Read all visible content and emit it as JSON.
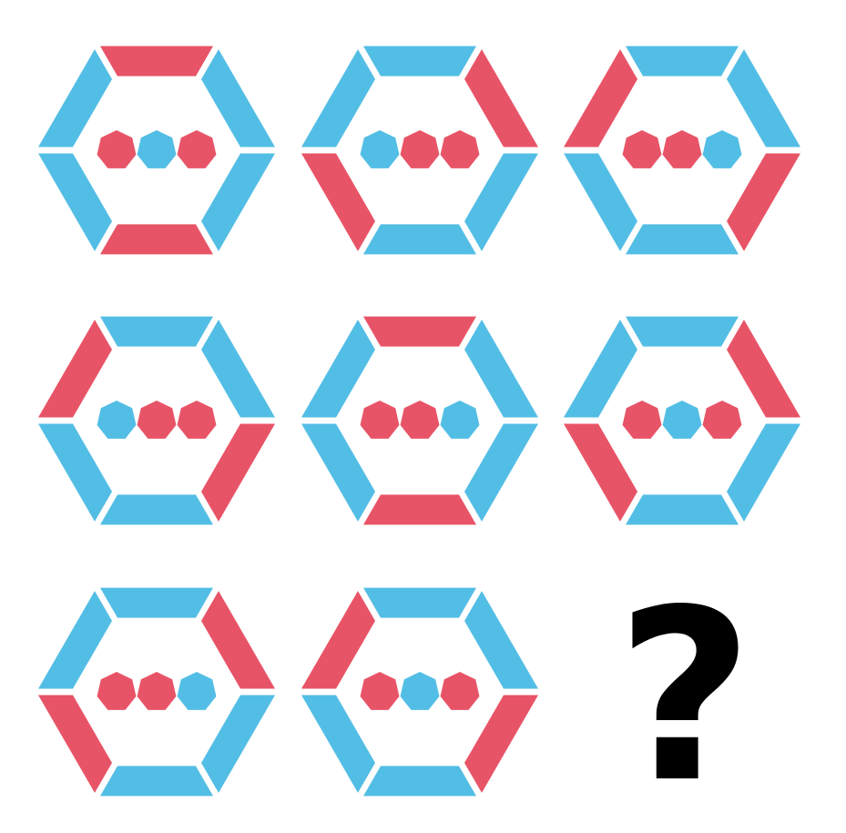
{
  "colors": {
    "red": "#E85467",
    "blue": "#53BEE5",
    "black": "#000000",
    "background": "#FFFFFF"
  },
  "puzzle": {
    "cells": [
      {
        "row": 1,
        "col": 1,
        "segments": [
          "red",
          "blue",
          "blue",
          "red",
          "blue",
          "blue"
        ],
        "dots": [
          "red",
          "blue",
          "red"
        ]
      },
      {
        "row": 1,
        "col": 2,
        "segments": [
          "blue",
          "red",
          "blue",
          "blue",
          "red",
          "blue"
        ],
        "dots": [
          "blue",
          "red",
          "red"
        ]
      },
      {
        "row": 1,
        "col": 3,
        "segments": [
          "blue",
          "blue",
          "red",
          "blue",
          "blue",
          "red"
        ],
        "dots": [
          "red",
          "red",
          "blue"
        ]
      },
      {
        "row": 2,
        "col": 1,
        "segments": [
          "blue",
          "blue",
          "red",
          "blue",
          "blue",
          "red"
        ],
        "dots": [
          "blue",
          "red",
          "red"
        ]
      },
      {
        "row": 2,
        "col": 2,
        "segments": [
          "red",
          "blue",
          "blue",
          "red",
          "blue",
          "blue"
        ],
        "dots": [
          "red",
          "red",
          "blue"
        ]
      },
      {
        "row": 2,
        "col": 3,
        "segments": [
          "blue",
          "red",
          "blue",
          "blue",
          "red",
          "blue"
        ],
        "dots": [
          "red",
          "blue",
          "red"
        ]
      },
      {
        "row": 3,
        "col": 1,
        "segments": [
          "blue",
          "red",
          "blue",
          "blue",
          "red",
          "blue"
        ],
        "dots": [
          "red",
          "red",
          "blue"
        ]
      },
      {
        "row": 3,
        "col": 2,
        "segments": [
          "blue",
          "blue",
          "red",
          "blue",
          "blue",
          "red"
        ],
        "dots": [
          "red",
          "blue",
          "red"
        ]
      }
    ],
    "missing": {
      "row": 3,
      "col": 3,
      "symbol": "?"
    }
  }
}
